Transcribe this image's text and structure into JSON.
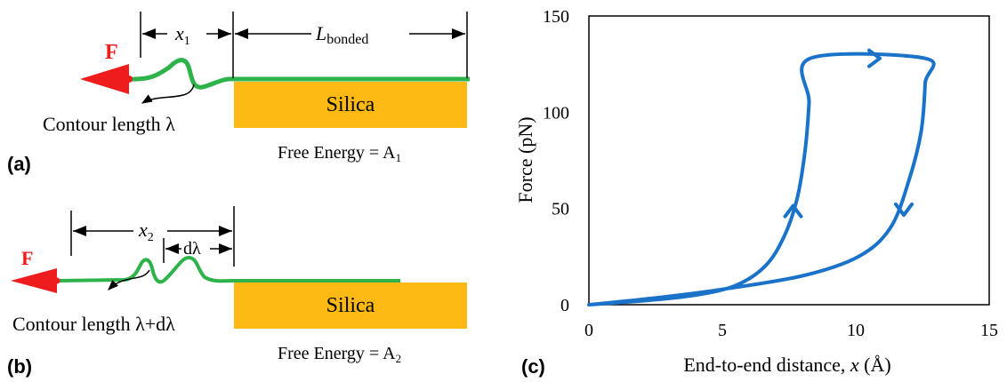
{
  "colors": {
    "force_arrow": "#ee1c1c",
    "chain": "#2db34a",
    "silica": "#fdb913",
    "curve": "#1a73c8",
    "text": "#000000"
  },
  "panel_a": {
    "label": "(a)",
    "force_symbol": "F",
    "x_label": "x",
    "x_sub": "1",
    "l_label": "L",
    "l_sub": "bonded",
    "silica_label": "Silica",
    "contour_label": "Contour length λ",
    "free_energy_text": "Free Energy = A",
    "free_energy_sub": "1"
  },
  "panel_b": {
    "label": "(b)",
    "force_symbol": "F",
    "x_label": "x",
    "x_sub": "2",
    "dlambda_label": "dλ",
    "silica_label": "Silica",
    "contour_label": "Contour length λ+dλ",
    "free_energy_text": "Free Energy = A",
    "free_energy_sub": "2"
  },
  "chart_data": {
    "label": "(c)",
    "type": "line",
    "xlabel": "End-to-end distance, ",
    "xlabel_var": "x",
    "xlabel_unit": " (Å)",
    "ylabel": "Force (pN)",
    "xlim": [
      0,
      15
    ],
    "ylim": [
      0,
      150
    ],
    "xticks": [
      0,
      5,
      10,
      15
    ],
    "yticks": [
      0,
      50,
      100,
      150
    ],
    "series": [
      {
        "loop": [
          [
            0,
            0
          ],
          [
            2,
            2
          ],
          [
            4,
            5
          ],
          [
            5.5,
            10
          ],
          [
            6.6,
            20
          ],
          [
            7.3,
            35
          ],
          [
            7.8,
            55
          ],
          [
            8.1,
            80
          ],
          [
            8.25,
            105
          ],
          [
            8.3,
            128
          ],
          [
            12.6,
            128
          ],
          [
            12.6,
            115
          ],
          [
            12.45,
            90
          ],
          [
            12.0,
            65
          ],
          [
            11.3,
            40
          ],
          [
            10.1,
            25
          ],
          [
            8.0,
            15
          ],
          [
            5.0,
            8
          ],
          [
            2.5,
            3.5
          ],
          [
            0,
            0
          ]
        ],
        "arrows": [
          {
            "at": [
              7.65,
              50
            ],
            "direction": "up"
          },
          {
            "at": [
              10.8,
              128
            ],
            "direction": "right"
          },
          {
            "at": [
              11.8,
              48
            ],
            "direction": "down"
          }
        ]
      }
    ]
  }
}
